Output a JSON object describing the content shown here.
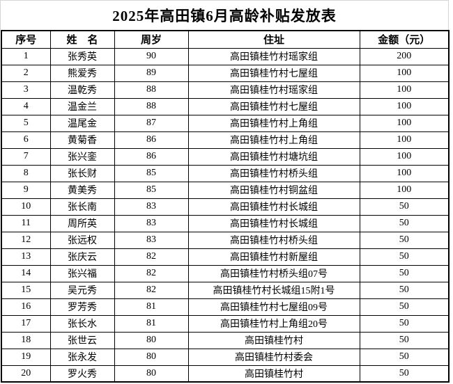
{
  "title": "2025年高田镇6月高龄补贴发放表",
  "table": {
    "headers": [
      "序号",
      "姓　名",
      "周岁",
      "住址",
      "金额（元）"
    ],
    "rows": [
      [
        "1",
        "张秀英",
        "90",
        "高田镇桂竹村瑶家组",
        "200"
      ],
      [
        "2",
        "熊爱秀",
        "89",
        "高田镇桂竹村七屋组",
        "100"
      ],
      [
        "3",
        "温乾秀",
        "88",
        "高田镇桂竹村瑶家组",
        "100"
      ],
      [
        "4",
        "温金兰",
        "88",
        "高田镇桂竹村七屋组",
        "100"
      ],
      [
        "5",
        "温尾金",
        "87",
        "高田镇桂竹村上角组",
        "100"
      ],
      [
        "6",
        "黄菊香",
        "86",
        "高田镇桂竹村上角组",
        "100"
      ],
      [
        "7",
        "张兴銮",
        "86",
        "高田镇桂竹村塘坑组",
        "100"
      ],
      [
        "8",
        "张长财",
        "85",
        "高田镇桂竹村桥头组",
        "100"
      ],
      [
        "9",
        "黄美秀",
        "85",
        "高田镇桂竹村铜盆组",
        "100"
      ],
      [
        "10",
        "张长南",
        "83",
        "高田镇桂竹村长城组",
        "50"
      ],
      [
        "11",
        "周所英",
        "83",
        "高田镇桂竹村长城组",
        "50"
      ],
      [
        "12",
        "张远权",
        "83",
        "高田镇桂竹村桥头组",
        "50"
      ],
      [
        "13",
        "张庆云",
        "82",
        "高田镇桂竹村新屋组",
        "50"
      ],
      [
        "14",
        "张兴福",
        "82",
        "高田镇桂竹村桥头组07号",
        "50"
      ],
      [
        "15",
        "吴元秀",
        "82",
        "高田镇桂竹村长城组15附1号",
        "50"
      ],
      [
        "16",
        "罗芳秀",
        "81",
        "高田镇桂竹村七屋组09号",
        "50"
      ],
      [
        "17",
        "张长水",
        "81",
        "高田镇桂竹村上角组20号",
        "50"
      ],
      [
        "18",
        "张世云",
        "80",
        "高田镇桂竹村",
        "50"
      ],
      [
        "19",
        "张永发",
        "80",
        "高田镇桂竹村委会",
        "50"
      ],
      [
        "20",
        "罗火秀",
        "80",
        "高田镇桂竹村",
        "50"
      ]
    ]
  },
  "colors": {
    "background": "#ffffff",
    "border": "#000000",
    "text": "#000000",
    "title_gridline": "#d4d4d4"
  }
}
